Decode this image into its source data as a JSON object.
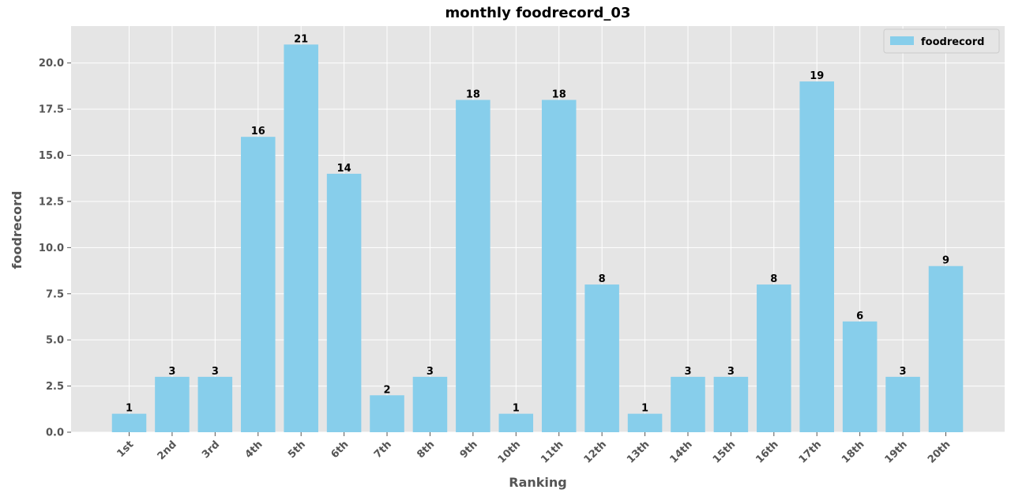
{
  "chart_data": {
    "type": "bar",
    "title": "monthly foodrecord_03",
    "xlabel": "Ranking",
    "ylabel": "foodrecord",
    "categories": [
      "1st",
      "2nd",
      "3rd",
      "4th",
      "5th",
      "6th",
      "7th",
      "8th",
      "9th",
      "10th",
      "11th",
      "12th",
      "13th",
      "14th",
      "15th",
      "16th",
      "17th",
      "18th",
      "19th",
      "20th"
    ],
    "series": [
      {
        "name": "foodrecord",
        "values": [
          1,
          3,
          3,
          16,
          21,
          14,
          2,
          3,
          18,
          1,
          18,
          8,
          1,
          3,
          3,
          8,
          19,
          6,
          3,
          9
        ]
      }
    ],
    "ylim": [
      0,
      22
    ],
    "yticks": [
      "0.0",
      "2.5",
      "5.0",
      "7.5",
      "10.0",
      "12.5",
      "15.0",
      "17.5",
      "20.0"
    ],
    "grid": true,
    "legend_position": "top-right",
    "colors": {
      "bar": "#87ceeb",
      "background": "#e5e5e5",
      "grid": "#ffffff"
    }
  }
}
